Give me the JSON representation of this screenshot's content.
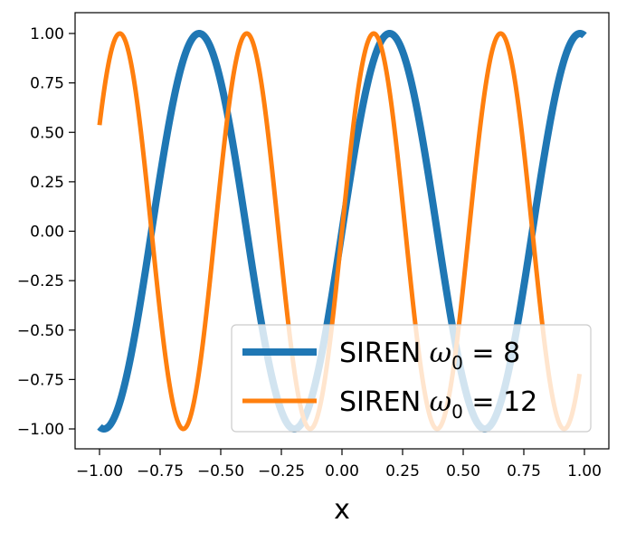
{
  "chart_data": {
    "type": "line",
    "title": "",
    "xlabel": "x",
    "ylabel": "",
    "xlim": [
      -1.0,
      1.0
    ],
    "ylim": [
      -1.0,
      1.0
    ],
    "grid": false,
    "legend_position": "bottom-right",
    "x_ticks": [
      "−1.00",
      "−0.75",
      "−0.50",
      "−0.25",
      "0.00",
      "0.25",
      "0.50",
      "0.75",
      "1.00"
    ],
    "y_ticks": [
      "1.00",
      "0.75",
      "0.50",
      "0.25",
      "0.00",
      "−0.25",
      "−0.50",
      "−0.75",
      "−1.00"
    ],
    "series": [
      {
        "name": "SIREN ω₀ = 8",
        "legend_prefix": "SIREN ",
        "legend_symbol": "ω",
        "legend_subscript": "0",
        "legend_suffix": " = 8",
        "function": "sin(8x)",
        "omega": 8,
        "color": "#1f77b4",
        "x_range": [
          -1.0,
          1.0
        ]
      },
      {
        "name": "SIREN ω₀ = 12",
        "legend_prefix": "SIREN ",
        "legend_symbol": "ω",
        "legend_subscript": "0",
        "legend_suffix": " = 12",
        "function": "sin(12x)",
        "omega": 12,
        "color": "#ff7f0e",
        "x_range": [
          -1.0,
          0.98
        ]
      }
    ]
  }
}
